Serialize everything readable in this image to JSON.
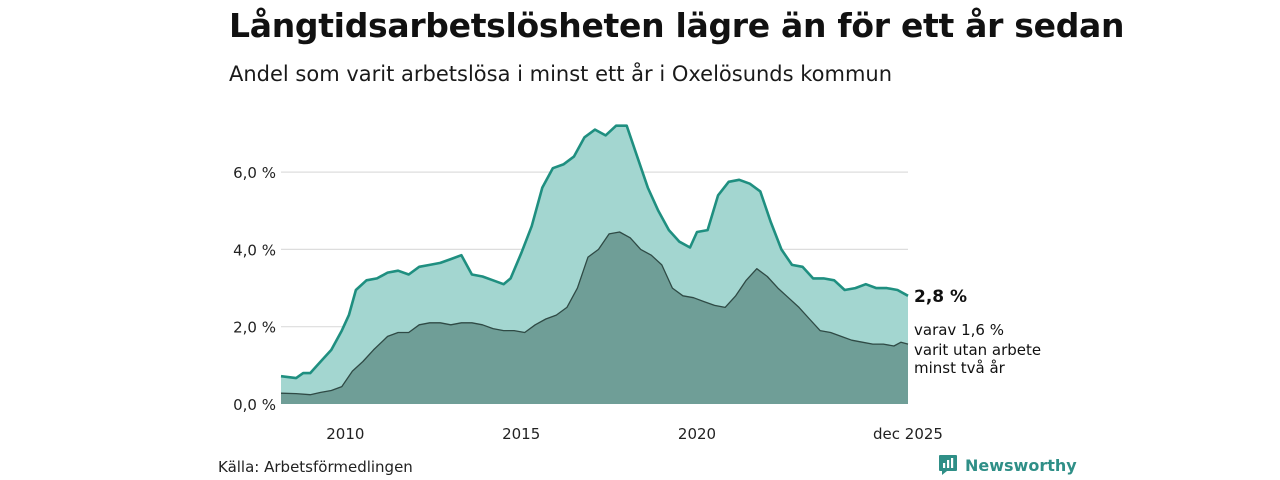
{
  "title": "Långtidsarbetslösheten lägre än för ett år sedan",
  "subtitle": "Andel som varit arbetslösa i minst ett år i Oxelösunds kommun",
  "source": "Källa: Arbetsförmedlingen",
  "brand": "Newsworthy",
  "colors": {
    "long_fill": "#a3d6d0",
    "long_line": "#1f8f80",
    "verylong_fill": "#6f9e97",
    "verylong_line": "#2f4a45",
    "grid": "#dddddd",
    "brand": "#2f8f87"
  },
  "chart_data": {
    "type": "area",
    "title": "Långtidsarbetslösheten lägre än för ett år sedan",
    "ylabel": "",
    "xlabel": "",
    "ylim": [
      0,
      7.4
    ],
    "xlim": [
      2008.17,
      2026.0
    ],
    "y_ticks": [
      0,
      2,
      4,
      6
    ],
    "y_tick_labels": [
      "0,0 %",
      "2,0 %",
      "4,0 %",
      "6,0 %"
    ],
    "x_ticks": [
      2010,
      2015,
      2020,
      2026.0
    ],
    "x_tick_labels": [
      "2010",
      "2015",
      "2020",
      "dec 2025"
    ],
    "grid": true,
    "series": [
      {
        "name": "Minst ett år",
        "x": [
          2008.17,
          2008.6,
          2008.8,
          2009.0,
          2009.3,
          2009.6,
          2009.9,
          2010.1,
          2010.3,
          2010.6,
          2010.9,
          2011.2,
          2011.5,
          2011.8,
          2012.1,
          2012.4,
          2012.7,
          2013.0,
          2013.3,
          2013.6,
          2013.9,
          2014.2,
          2014.5,
          2014.7,
          2015.0,
          2015.3,
          2015.6,
          2015.9,
          2016.2,
          2016.5,
          2016.8,
          2017.1,
          2017.4,
          2017.7,
          2018.0,
          2018.3,
          2018.6,
          2018.9,
          2019.2,
          2019.5,
          2019.8,
          2020.0,
          2020.3,
          2020.6,
          2020.9,
          2021.2,
          2021.5,
          2021.8,
          2022.1,
          2022.4,
          2022.7,
          2023.0,
          2023.3,
          2023.6,
          2023.9,
          2024.2,
          2024.5,
          2024.8,
          2025.1,
          2025.4,
          2025.7,
          2026.0
        ],
        "values": [
          0.72,
          0.67,
          0.8,
          0.8,
          1.1,
          1.4,
          1.9,
          2.3,
          2.95,
          3.2,
          3.25,
          3.4,
          3.45,
          3.35,
          3.55,
          3.6,
          3.65,
          3.75,
          3.85,
          3.35,
          3.3,
          3.2,
          3.1,
          3.25,
          3.9,
          4.6,
          5.6,
          6.1,
          6.2,
          6.4,
          6.9,
          7.1,
          6.95,
          7.2,
          7.2,
          6.4,
          5.6,
          5.0,
          4.5,
          4.2,
          4.05,
          4.45,
          4.5,
          5.4,
          5.75,
          5.8,
          5.7,
          5.5,
          4.7,
          4.0,
          3.6,
          3.55,
          3.25,
          3.25,
          3.2,
          2.95,
          3.0,
          3.1,
          3.0,
          3.0,
          2.95,
          2.8
        ]
      },
      {
        "name": "Minst två år",
        "x": [
          2008.17,
          2008.6,
          2009.0,
          2009.3,
          2009.6,
          2009.9,
          2010.2,
          2010.5,
          2010.8,
          2011.2,
          2011.5,
          2011.8,
          2012.1,
          2012.4,
          2012.7,
          2013.0,
          2013.3,
          2013.6,
          2013.9,
          2014.2,
          2014.5,
          2014.8,
          2015.1,
          2015.4,
          2015.7,
          2016.0,
          2016.3,
          2016.6,
          2016.9,
          2017.2,
          2017.5,
          2017.8,
          2018.1,
          2018.4,
          2018.7,
          2019.0,
          2019.3,
          2019.6,
          2019.9,
          2020.2,
          2020.5,
          2020.8,
          2021.1,
          2021.4,
          2021.7,
          2022.0,
          2022.3,
          2022.6,
          2022.9,
          2023.2,
          2023.5,
          2023.8,
          2024.1,
          2024.4,
          2024.7,
          2025.0,
          2025.3,
          2025.6,
          2025.8,
          2026.0
        ],
        "values": [
          0.28,
          0.27,
          0.24,
          0.3,
          0.35,
          0.45,
          0.85,
          1.1,
          1.4,
          1.75,
          1.85,
          1.85,
          2.05,
          2.1,
          2.1,
          2.05,
          2.1,
          2.1,
          2.05,
          1.95,
          1.9,
          1.9,
          1.85,
          2.05,
          2.2,
          2.3,
          2.5,
          3.0,
          3.8,
          4.0,
          4.4,
          4.45,
          4.3,
          4.0,
          3.85,
          3.6,
          3.0,
          2.8,
          2.75,
          2.65,
          2.55,
          2.5,
          2.8,
          3.2,
          3.5,
          3.3,
          3.0,
          2.75,
          2.5,
          2.2,
          1.9,
          1.85,
          1.75,
          1.65,
          1.6,
          1.55,
          1.55,
          1.5,
          1.6,
          1.55
        ]
      }
    ],
    "end_label": "2,8 %",
    "end_note": [
      "varav 1,6 %",
      "varit utan arbete",
      "minst två år"
    ]
  }
}
